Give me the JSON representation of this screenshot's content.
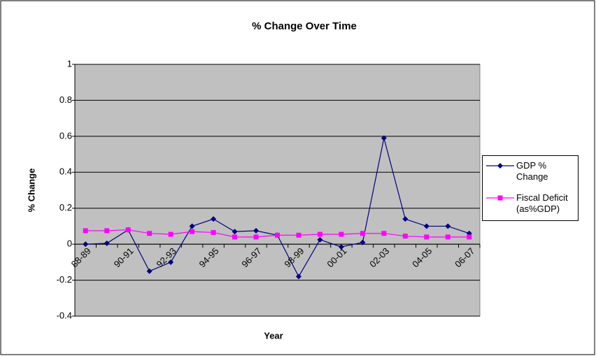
{
  "chart_data": {
    "type": "line",
    "title": "% Change Over Time",
    "x_label": "Year",
    "y_label": "% Change",
    "categories": [
      "88-89",
      null,
      "90-91",
      null,
      "92-93",
      null,
      "94-95",
      null,
      "96-97",
      null,
      "98-99",
      null,
      "00-01",
      null,
      "02-03",
      null,
      "04-05",
      null,
      "06-07"
    ],
    "series": [
      {
        "name": "GDP % Change",
        "color": "#000080",
        "marker": "diamond",
        "values": [
          0,
          0.005,
          0.08,
          -0.15,
          -0.1,
          0.1,
          0.14,
          0.07,
          0.075,
          0.05,
          -0.18,
          0.025,
          -0.015,
          0.01,
          0.59,
          0.14,
          0.1,
          0.1,
          0.06
        ]
      },
      {
        "name": "Fiscal Deficit (as%GDP)",
        "color": "#ff00ff",
        "marker": "square",
        "values": [
          0.075,
          0.075,
          0.08,
          0.06,
          0.055,
          0.07,
          0.065,
          0.04,
          0.04,
          0.05,
          0.05,
          0.055,
          0.055,
          0.06,
          0.06,
          0.045,
          0.04,
          0.04,
          0.04
        ]
      }
    ],
    "ylim": [
      -0.4,
      1
    ],
    "yticks": [
      -0.4,
      -0.2,
      0,
      0.2,
      0.4,
      0.6,
      0.8,
      1
    ],
    "grid": true,
    "legend": "right"
  }
}
